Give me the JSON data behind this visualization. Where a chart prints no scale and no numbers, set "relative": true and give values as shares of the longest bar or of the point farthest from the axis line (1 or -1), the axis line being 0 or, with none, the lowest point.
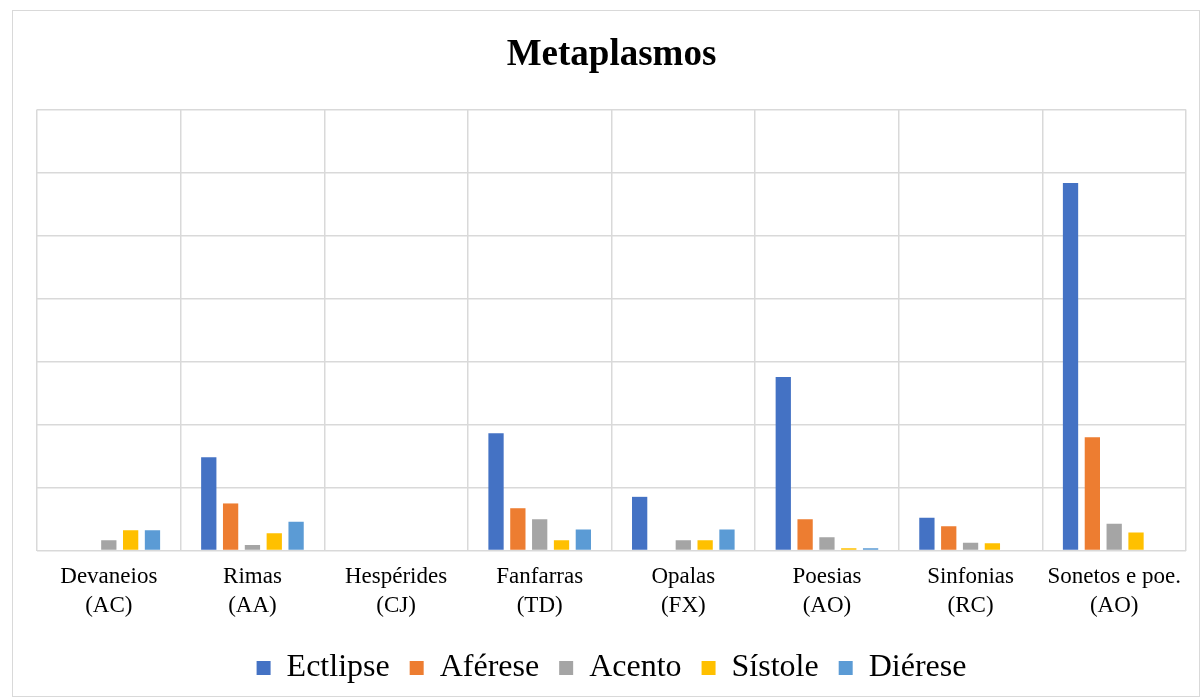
{
  "chart_data": {
    "type": "bar",
    "title": "Metaplasmos",
    "relative": true,
    "grid": true,
    "legend": "bottom",
    "categories": [
      "Devaneios (AC)",
      "Rimas (AA)",
      "Hespérides (CJ)",
      "Fanfarras (TD)",
      "Opalas (FX)",
      "Poesias (AO)",
      "Sinfonias (RC)",
      "Sonetos e poe. (AO)"
    ],
    "series": [
      {
        "name": "Ectlipse",
        "color": "#4472c4",
        "values": [
          0,
          0.254,
          0,
          0.319,
          0.146,
          0.472,
          0.089,
          1
        ]
      },
      {
        "name": "Aférese",
        "color": "#ed7d31",
        "values": [
          0,
          0.128,
          0,
          0.115,
          0,
          0.085,
          0.066,
          0.308
        ]
      },
      {
        "name": "Acento",
        "color": "#a5a5a5",
        "values": [
          0.028,
          0.015,
          0,
          0.085,
          0.028,
          0.036,
          0.021,
          0.073
        ]
      },
      {
        "name": "Sístole",
        "color": "#ffc000",
        "values": [
          0.055,
          0.047,
          0,
          0.028,
          0.028,
          0.006,
          0.02,
          0.049
        ]
      },
      {
        "name": "Diérese",
        "color": "#5b9bd5",
        "values": [
          0.055,
          0.078,
          0,
          0.057,
          0.057,
          0.006,
          0,
          0
        ]
      }
    ]
  }
}
